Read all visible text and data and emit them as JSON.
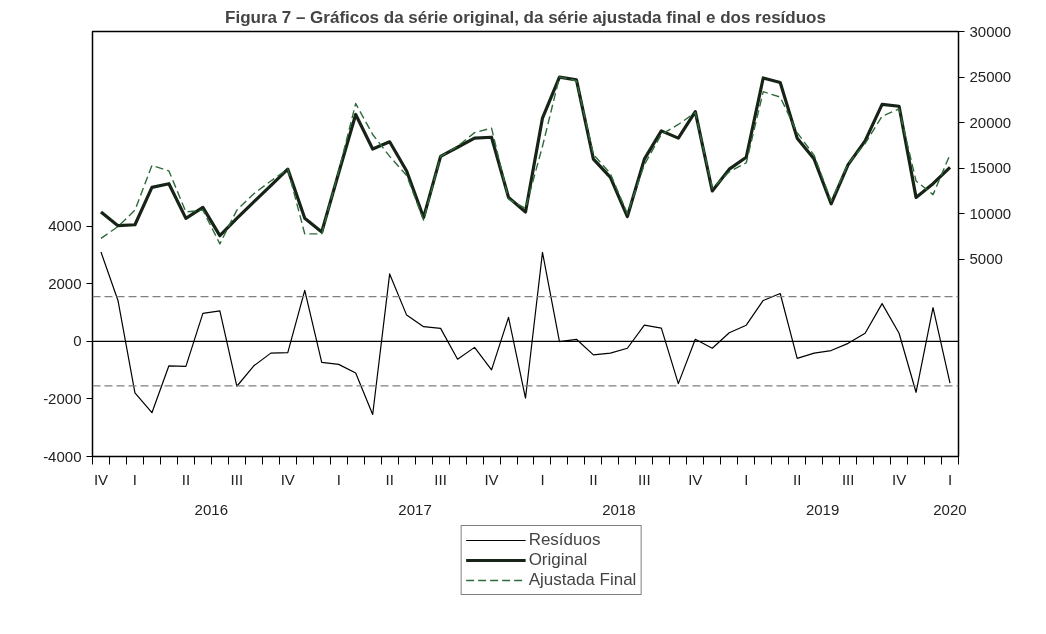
{
  "chart_data": {
    "type": "line",
    "title": "Figura 7 – Gráficos da série original, da série ajustada final e dos resíduos",
    "categories": [
      "IV",
      null,
      "I",
      null,
      null,
      "II",
      null,
      null,
      "III",
      null,
      null,
      "IV",
      null,
      null,
      "I",
      null,
      null,
      "II",
      null,
      null,
      "III",
      null,
      null,
      "IV",
      null,
      null,
      "I",
      null,
      null,
      "II",
      null,
      null,
      "III",
      null,
      null,
      "IV",
      null,
      null,
      "I",
      null,
      null,
      "II",
      null,
      null,
      "III",
      null,
      null,
      "IV",
      null,
      null,
      "I"
    ],
    "series": [
      {
        "name": "Resíduos",
        "color": "#000000",
        "line_style": "solid",
        "values": [
          3100,
          1420,
          -1790,
          -2480,
          -850,
          -870,
          970,
          1060,
          -1560,
          -850,
          -410,
          -390,
          1770,
          -730,
          -800,
          -1100,
          -2540,
          2340,
          910,
          510,
          450,
          -620,
          -210,
          -990,
          830,
          -1970,
          3090,
          -10,
          70,
          -470,
          -410,
          -240,
          560,
          460,
          -1470,
          70,
          -240,
          300,
          560,
          1420,
          1660,
          -590,
          -410,
          -320,
          -70,
          280,
          1310,
          280,
          -1770,
          1170,
          -1450
        ]
      },
      {
        "name": "Original",
        "color": "#172317",
        "line_style": "solid",
        "axis": "y2",
        "values": [
          10200,
          8700,
          8800,
          12900,
          13300,
          9500,
          10700,
          7600,
          9500,
          11300,
          13100,
          14900,
          9500,
          8000,
          14500,
          20900,
          17100,
          17900,
          14700,
          9600,
          16300,
          17300,
          18300,
          18400,
          11800,
          10200,
          20500,
          25000,
          24700,
          16000,
          14000,
          9700,
          16000,
          19100,
          18300,
          21200,
          12500,
          14900,
          16200,
          24900,
          24400,
          18300,
          16000,
          11100,
          15400,
          18000,
          22000,
          21800,
          11800,
          13300,
          15100
        ]
      },
      {
        "name": "Ajustada Final",
        "color": "#2e6b3a",
        "line_style": "dashed",
        "axis": "y2",
        "values": [
          7300,
          8600,
          10400,
          15300,
          14700,
          10200,
          10400,
          6700,
          10400,
          12200,
          13600,
          14900,
          7800,
          7800,
          14700,
          22100,
          18700,
          16300,
          14200,
          9300,
          16300,
          17400,
          18900,
          19400,
          11600,
          10600,
          17400,
          25000,
          24600,
          16500,
          14400,
          10000,
          15400,
          18700,
          19800,
          21100,
          12800,
          14600,
          15600,
          23400,
          22800,
          18900,
          16400,
          11400,
          15500,
          17700,
          20700,
          21500,
          13600,
          12100,
          16500
        ]
      }
    ],
    "x2lim": [
      2015.917,
      2020.167
    ],
    "x2ticks": [
      {
        "value": 2016.5,
        "label": "2016"
      },
      {
        "value": 2017.5,
        "label": "2017"
      },
      {
        "value": 2018.5,
        "label": "2018"
      },
      {
        "value": 2019.5,
        "label": "2019"
      },
      {
        "value": 2020.125,
        "label": "2020"
      }
    ],
    "ylim": [
      -4000,
      10760
    ],
    "yticks": [
      -4000,
      -2000,
      0,
      2000,
      4000
    ],
    "y2lim": [
      -16630,
      30000
    ],
    "y2ticks": [
      5000,
      10000,
      15000,
      20000,
      25000,
      30000
    ],
    "ref_lines": [
      {
        "axis": "y",
        "value": 0,
        "label": null,
        "color": "#000000",
        "line_style": "solid"
      },
      {
        "axis": "y",
        "value": 1550,
        "label": null,
        "color": "#808080",
        "line_style": "dashed"
      },
      {
        "axis": "y",
        "value": -1550,
        "label": null,
        "color": "#808080",
        "line_style": "dashed"
      }
    ],
    "grid": false,
    "legend": "bottom"
  }
}
